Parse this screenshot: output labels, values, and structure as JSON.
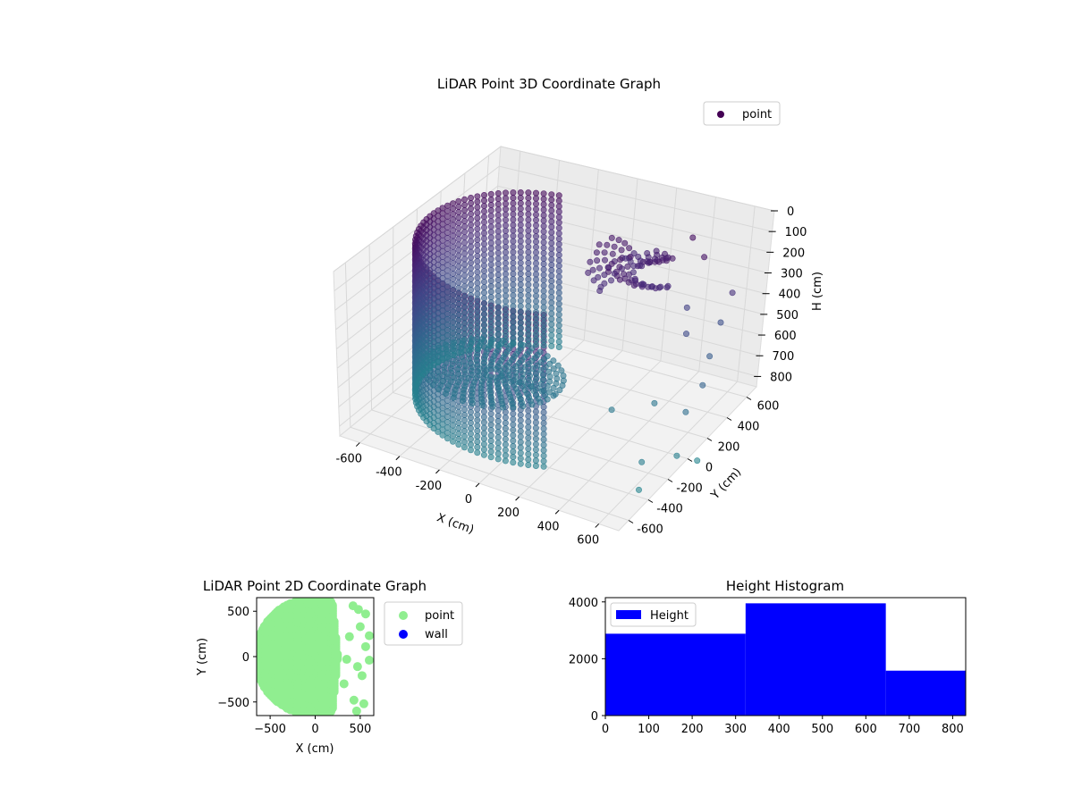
{
  "chart_data": [
    {
      "type": "scatter3d",
      "title": "LiDAR Point 3D Coordinate Graph",
      "xlabel": "X (cm)",
      "ylabel": "Y (cm)",
      "zlabel": "H (cm)",
      "xlim": [
        -700,
        700
      ],
      "ylim": [
        -700,
        700
      ],
      "zlim": [
        0,
        850
      ],
      "z_inverted": true,
      "xticks": [
        -600,
        -400,
        -200,
        0,
        200,
        400,
        600
      ],
      "yticks": [
        -600,
        -400,
        -200,
        0,
        200,
        400,
        600
      ],
      "zticks": [
        0,
        100,
        200,
        300,
        400,
        500,
        600,
        700,
        800
      ],
      "colormap": "viridis",
      "legend": {
        "position": "upper-right",
        "entries": [
          {
            "label": "point",
            "color": "#440154"
          }
        ]
      },
      "description_series": {
        "name": "point",
        "wall_ring": {
          "radius": 560,
          "angle_range_deg": [
            110,
            300
          ],
          "z_range": [
            0,
            800
          ]
        },
        "floor_disk": {
          "center": [
            -300,
            0
          ],
          "radius": 320,
          "z": 700
        },
        "dense_cluster": {
          "center": [
            200,
            350
          ],
          "z": 80
        },
        "outliers": [
          [
            420,
            470,
            320
          ],
          [
            520,
            600,
            420
          ],
          [
            560,
            420,
            500
          ],
          [
            480,
            350,
            380
          ],
          [
            610,
            260,
            560
          ],
          [
            600,
            120,
            640
          ],
          [
            400,
            200,
            700
          ],
          [
            260,
            60,
            720
          ],
          [
            640,
            -40,
            780
          ],
          [
            560,
            -220,
            760
          ],
          [
            620,
            -360,
            820
          ],
          [
            700,
            40,
            820
          ],
          [
            480,
            520,
            60
          ],
          [
            380,
            600,
            30
          ],
          [
            600,
            560,
            220
          ],
          [
            300,
            500,
            120
          ]
        ]
      },
      "grid": true
    },
    {
      "type": "scatter",
      "title": "LiDAR Point 2D Coordinate Graph",
      "xlabel": "X (cm)",
      "ylabel": "Y (cm)",
      "xlim": [
        -650,
        650
      ],
      "ylim": [
        -650,
        650
      ],
      "xticks": [
        -500,
        0,
        500
      ],
      "yticks": [
        -500,
        0,
        500
      ],
      "legend": {
        "position": "outside-right",
        "entries": [
          {
            "label": "point",
            "color": "#90ee90"
          },
          {
            "label": "wall",
            "color": "#0000ff"
          }
        ]
      },
      "series": [
        {
          "name": "point",
          "color": "#90ee90",
          "region": "half-disk x from -600 to 250, radius 640, plus scattered points near x 400-600"
        },
        {
          "name": "wall",
          "color": "#0000ff",
          "points": []
        }
      ]
    },
    {
      "type": "bar",
      "title": "Height Histogram",
      "xlim": [
        0,
        830
      ],
      "ylim": [
        0,
        4150
      ],
      "xticks": [
        0,
        100,
        200,
        300,
        400,
        500,
        600,
        700,
        800
      ],
      "yticks": [
        0,
        2000,
        4000
      ],
      "legend": {
        "position": "upper-left",
        "entries": [
          {
            "label": "Height",
            "color": "#0000ff"
          }
        ]
      },
      "bins": [
        {
          "from": 0,
          "to": 323,
          "count": 2880
        },
        {
          "from": 323,
          "to": 646,
          "count": 3950
        },
        {
          "from": 646,
          "to": 830,
          "count": 1580
        }
      ],
      "color": "#0000ff"
    }
  ]
}
